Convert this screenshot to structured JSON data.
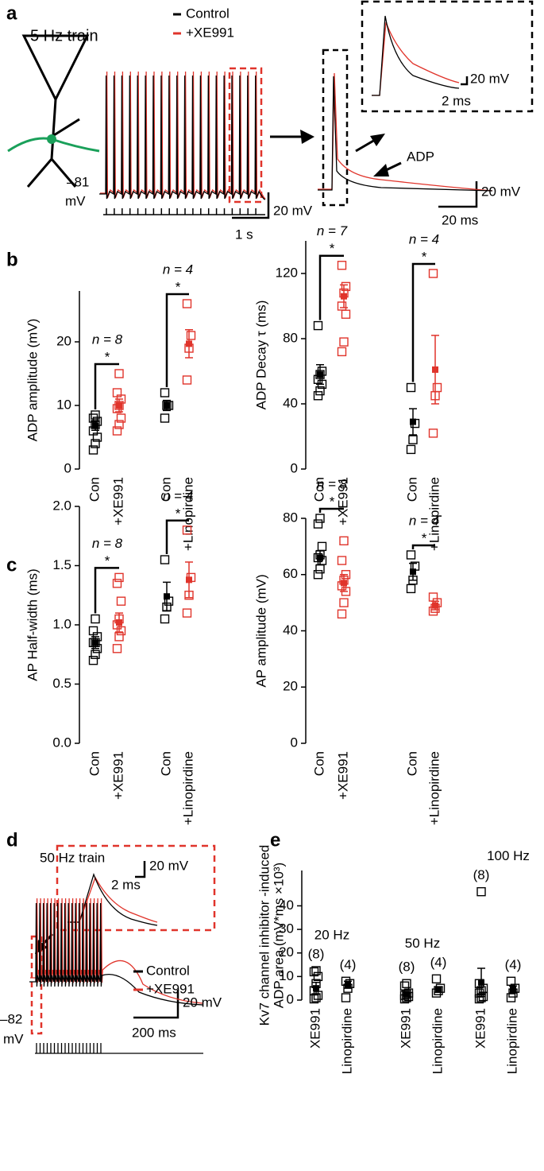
{
  "panel_labels": [
    "a",
    "b",
    "c",
    "d",
    "e"
  ],
  "panel_a": {
    "title": "5 Hz train",
    "legend": [
      "Control",
      "+XE991"
    ],
    "vm": "–81",
    "vm_unit": "mV",
    "train_scale_y": "20 mV",
    "train_scale_x": "1 s",
    "zoom_scale_y": "20 mV",
    "zoom_scale_x": "20 ms",
    "inset_scale_y": "20 mV",
    "inset_scale_x": "2 ms",
    "adp": "ADP"
  },
  "panel_d": {
    "title": "50 Hz train",
    "legend": [
      "Control",
      "+XE991"
    ],
    "vm": "–82",
    "vm_unit": "mV",
    "scale_y": "20 mV",
    "scale_x": "200 ms",
    "inset_scale_y": "20 mV",
    "inset_scale_x": "2 ms"
  },
  "chart_data": [
    {
      "type": "dotplot",
      "ylabel": "ADP amplitude (mV)",
      "ylim": [
        0,
        28
      ],
      "yticks": [
        0,
        10,
        20
      ],
      "categories": [
        "Con",
        "+XE991",
        "Con",
        "+Linopirdine"
      ],
      "groups": [
        {
          "color": "#000000",
          "points": [
            3,
            4,
            5,
            6,
            7,
            7.5,
            8,
            8.5
          ],
          "mean": 6.8,
          "error": 0.7
        },
        {
          "color": "#e0342b",
          "points": [
            6,
            7,
            8,
            9.5,
            10,
            11,
            12,
            15
          ],
          "mean": 10,
          "error": 1
        },
        {
          "color": "#000000",
          "points": [
            8,
            10,
            10,
            12
          ],
          "mean": 10,
          "error": 0.8
        },
        {
          "color": "#e0342b",
          "points": [
            14,
            19,
            21,
            26
          ],
          "mean": 19.7,
          "error": 2.2
        }
      ],
      "comparisons": [
        {
          "star": "*",
          "n_label": "n = 8"
        },
        {
          "star": "*",
          "n_label": "n = 4"
        }
      ]
    },
    {
      "type": "dotplot",
      "ylabel": "ADP Decay τ (ms)",
      "ylim": [
        0,
        140
      ],
      "yticks": [
        0,
        40,
        80,
        120
      ],
      "categories": [
        "Con",
        "+XE991",
        "Con",
        "+Linopirdine"
      ],
      "groups": [
        {
          "color": "#000000",
          "points": [
            45,
            48,
            52,
            55,
            58,
            60,
            88
          ],
          "mean": 58,
          "error": 6
        },
        {
          "color": "#e0342b",
          "points": [
            72,
            78,
            95,
            100,
            108,
            112,
            125
          ],
          "mean": 106,
          "error": 7
        },
        {
          "color": "#000000",
          "points": [
            12,
            18,
            28,
            50
          ],
          "mean": 29,
          "error": 8
        },
        {
          "color": "#e0342b",
          "points": [
            22,
            45,
            50,
            120
          ],
          "mean": 61,
          "error": 21
        }
      ],
      "comparisons": [
        {
          "star": "*",
          "n_label": "n = 7"
        },
        {
          "star": "*",
          "n_label": "n = 4"
        }
      ]
    },
    {
      "type": "dotplot",
      "ylabel": "AP Half-width (ms)",
      "ylim": [
        0,
        2
      ],
      "yticks": [
        {
          "value": 0,
          "label": "0.0"
        },
        0.5,
        {
          "value": 1,
          "label": "1.0"
        },
        1.5,
        {
          "value": 2,
          "label": "2.0"
        }
      ],
      "categories": [
        "Con",
        "+XE991",
        "Con",
        "+Linopirdine"
      ],
      "groups": [
        {
          "color": "#000000",
          "points": [
            0.7,
            0.75,
            0.8,
            0.85,
            0.85,
            0.9,
            0.95,
            1.05
          ],
          "mean": 0.85,
          "error": 0.05
        },
        {
          "color": "#e0342b",
          "points": [
            0.8,
            0.9,
            0.95,
            1,
            1.05,
            1.2,
            1.35,
            1.4
          ],
          "mean": 1.02,
          "error": 0.08
        },
        {
          "color": "#000000",
          "points": [
            1.05,
            1.15,
            1.2,
            1.55
          ],
          "mean": 1.24,
          "error": 0.12
        },
        {
          "color": "#e0342b",
          "points": [
            1.1,
            1.25,
            1.4,
            1.8
          ],
          "mean": 1.38,
          "error": 0.15
        }
      ],
      "comparisons": [
        {
          "star": "*",
          "n_label": "n = 8"
        },
        {
          "star": "*",
          "n_label": "n = 4"
        }
      ]
    },
    {
      "type": "dotplot",
      "ylabel": "AP amplitude (mV)",
      "ylim": [
        0,
        80
      ],
      "yticks": [
        0,
        20,
        40,
        60,
        80
      ],
      "categories": [
        "Con",
        "+XE991",
        "Con",
        "+Linopirdine"
      ],
      "groups": [
        {
          "color": "#000000",
          "points": [
            60,
            62,
            65,
            66,
            67,
            70,
            78,
            80
          ],
          "mean": 66,
          "error": 2.5
        },
        {
          "color": "#e0342b",
          "points": [
            46,
            50,
            54,
            56,
            58,
            60,
            65,
            72
          ],
          "mean": 57,
          "error": 3
        },
        {
          "color": "#000000",
          "points": [
            55,
            58,
            63,
            67
          ],
          "mean": 61,
          "error": 3
        },
        {
          "color": "#e0342b",
          "points": [
            47,
            48,
            50,
            52
          ],
          "mean": 49,
          "error": 1.5
        }
      ],
      "comparisons": [
        {
          "star": "*",
          "n_label": "n = 8"
        },
        {
          "star": "*",
          "n_label": "n = 4"
        }
      ]
    },
    {
      "type": "dotplot",
      "ylabel": [
        "Kv7 channel inhibitor -induced",
        "ADP area (mV*ms ×10³)"
      ],
      "ylim": [
        0,
        55
      ],
      "yticks": [
        0,
        10,
        20,
        30,
        40
      ],
      "categories": [
        "XE991",
        "Linopirdine",
        "XE991",
        "Linopirdine",
        "XE991",
        "Linopirdine"
      ],
      "groups": [
        {
          "color": "#000000",
          "points": [
            0.5,
            1,
            2,
            4,
            7,
            10,
            12,
            12.5
          ],
          "mean": 5,
          "error": 2.5
        },
        {
          "color": "#000000",
          "points": [
            1,
            5,
            7,
            8
          ],
          "mean": 6.5,
          "error": 1.5
        },
        {
          "color": "#000000",
          "points": [
            0.5,
            1,
            1.5,
            2,
            2.5,
            3,
            6,
            7
          ],
          "mean": 2.5,
          "error": 0.8
        },
        {
          "color": "#000000",
          "points": [
            3,
            4,
            5,
            9
          ],
          "mean": 4.5,
          "error": 1.2
        },
        {
          "color": "#000000",
          "points": [
            0.5,
            1,
            1.5,
            3,
            4,
            5,
            7,
            46
          ],
          "mean": 7.5,
          "error": 6
        },
        {
          "color": "#000000",
          "points": [
            1,
            3,
            5,
            8
          ],
          "mean": 4.5,
          "error": 1.5
        }
      ],
      "group_labels": [
        "(8)",
        "(4)",
        "(8)",
        "(4)",
        "(8)",
        "(4)"
      ],
      "frequencies": [
        "20 Hz",
        "50 Hz",
        "100 Hz"
      ]
    }
  ]
}
